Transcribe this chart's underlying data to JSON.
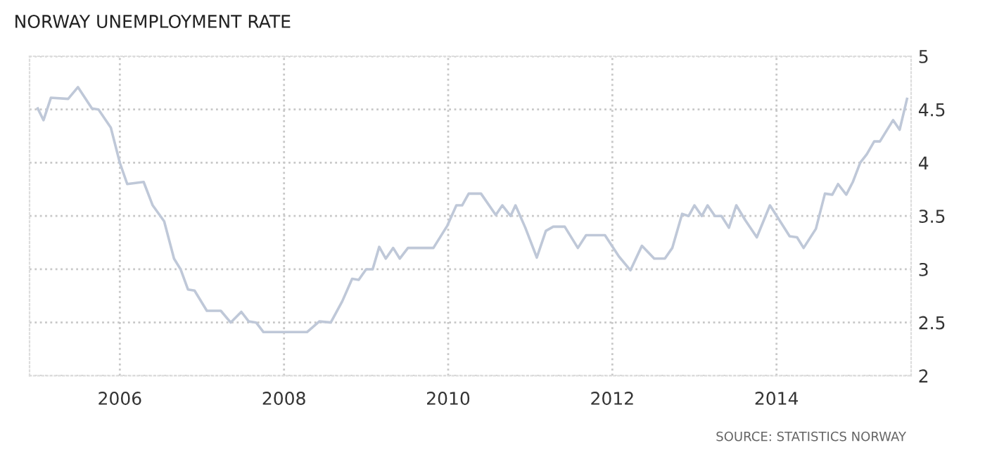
{
  "chart_data": {
    "type": "line",
    "title": "NORWAY UNEMPLOYMENT RATE",
    "annotations": [
      "SOURCE: STATISTICS NORWAY"
    ],
    "x": [
      2005.0,
      2005.07,
      2005.16,
      2005.37,
      2005.49,
      2005.66,
      2005.74,
      2005.89,
      2006.0,
      2006.09,
      2006.29,
      2006.4,
      2006.54,
      2006.66,
      2006.74,
      2006.83,
      2006.91,
      2007.06,
      2007.23,
      2007.35,
      2007.48,
      2007.57,
      2007.66,
      2007.75,
      2008.28,
      2008.43,
      2008.57,
      2008.71,
      2008.83,
      2008.91,
      2009.0,
      2009.08,
      2009.16,
      2009.24,
      2009.33,
      2009.41,
      2009.51,
      2009.82,
      2009.99,
      2010.1,
      2010.17,
      2010.25,
      2010.4,
      2010.58,
      2010.66,
      2010.76,
      2010.82,
      2010.94,
      2011.08,
      2011.19,
      2011.28,
      2011.42,
      2011.58,
      2011.68,
      2011.91,
      2012.08,
      2012.22,
      2012.36,
      2012.51,
      2012.64,
      2012.73,
      2012.85,
      2012.93,
      2013.0,
      2013.09,
      2013.16,
      2013.25,
      2013.33,
      2013.42,
      2013.51,
      2013.62,
      2013.76,
      2013.92,
      2014.02,
      2014.16,
      2014.25,
      2014.33,
      2014.48,
      2014.59,
      2014.68,
      2014.75,
      2014.85,
      2014.93,
      2015.02,
      2015.1,
      2015.19,
      2015.26,
      2015.42,
      2015.5,
      2015.59
    ],
    "series": [
      {
        "color": "#bfc8d8",
        "values": [
          4.51,
          4.4,
          4.61,
          4.6,
          4.71,
          4.51,
          4.5,
          4.33,
          4.0,
          3.8,
          3.82,
          3.6,
          3.45,
          3.1,
          3.0,
          2.81,
          2.8,
          2.61,
          2.61,
          2.5,
          2.6,
          2.51,
          2.5,
          2.41,
          2.41,
          2.51,
          2.5,
          2.7,
          2.91,
          2.9,
          3.0,
          3.0,
          3.21,
          3.1,
          3.2,
          3.1,
          3.2,
          3.2,
          3.41,
          3.6,
          3.6,
          3.71,
          3.71,
          3.51,
          3.6,
          3.5,
          3.6,
          3.39,
          3.11,
          3.36,
          3.4,
          3.4,
          3.2,
          3.32,
          3.32,
          3.12,
          2.99,
          3.22,
          3.1,
          3.1,
          3.2,
          3.52,
          3.5,
          3.6,
          3.5,
          3.6,
          3.5,
          3.5,
          3.39,
          3.6,
          3.46,
          3.3,
          3.6,
          3.48,
          3.31,
          3.3,
          3.2,
          3.38,
          3.71,
          3.7,
          3.8,
          3.7,
          3.82,
          4.0,
          4.08,
          4.2,
          4.2,
          4.4,
          4.31,
          4.6
        ]
      }
    ],
    "xlim": [
      2004.9,
      2015.64
    ],
    "xticks": [
      2006,
      2008,
      2010,
      2012,
      2014
    ],
    "ylim": [
      2,
      5
    ],
    "yticks": [
      2,
      2.5,
      3,
      3.5,
      4,
      4.5,
      5
    ],
    "grid": true,
    "legend": false,
    "marker": "none",
    "line_style": "solid"
  }
}
